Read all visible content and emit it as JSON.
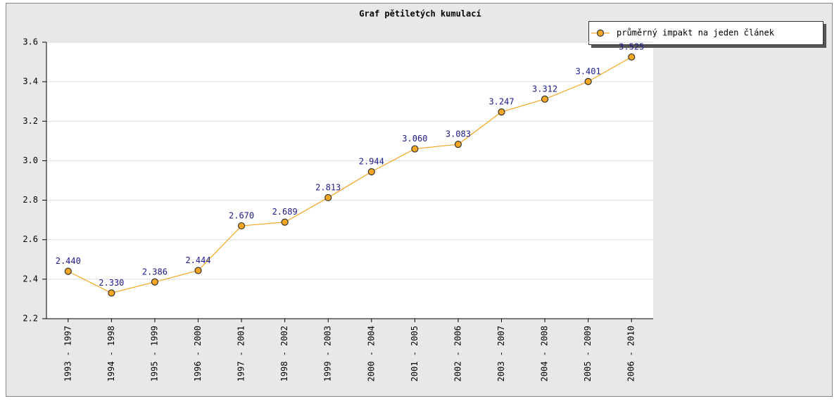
{
  "chart_data": {
    "type": "line",
    "title": "Graf pětiletých kumulací",
    "categories": [
      "1993 - 1997",
      "1994 - 1998",
      "1995 - 1999",
      "1996 - 2000",
      "1997 - 2001",
      "1998 - 2002",
      "1999 - 2003",
      "2000 - 2004",
      "2001 - 2005",
      "2002 - 2006",
      "2003 - 2007",
      "2004 - 2008",
      "2005 - 2009",
      "2006 - 2010"
    ],
    "series": [
      {
        "name": "průměrný impakt na jeden článek",
        "color": "#f5a623",
        "values": [
          2.44,
          2.33,
          2.386,
          2.444,
          2.67,
          2.689,
          2.813,
          2.944,
          3.06,
          3.083,
          3.247,
          3.312,
          3.401,
          3.525
        ],
        "value_labels": [
          "2.440",
          "2.330",
          "2.386",
          "2.444",
          "2.670",
          "2.689",
          "2.813",
          "2.944",
          "3.060",
          "3.083",
          "3.247",
          "3.312",
          "3.401",
          "3.525"
        ]
      }
    ],
    "ylim": [
      2.2,
      3.6
    ],
    "yticks": [
      2.2,
      2.4,
      2.6,
      2.8,
      {
        "value": 3.0,
        "label": "3.0"
      },
      3.2,
      3.4,
      3.6
    ],
    "grid": true,
    "legend": "top-right"
  }
}
